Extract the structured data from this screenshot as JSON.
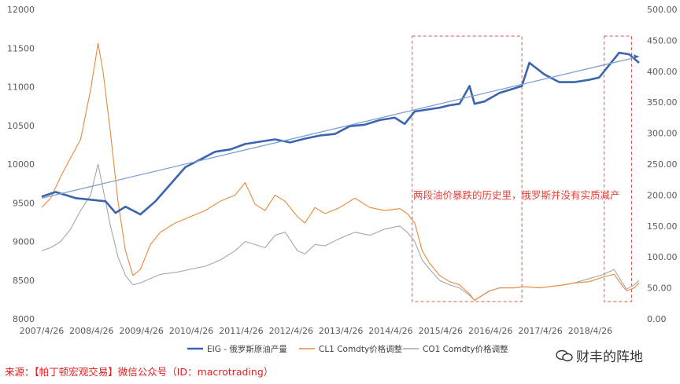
{
  "chart_data": {
    "type": "line",
    "x_ticks": [
      "2007/4/26",
      "2008/4/26",
      "2009/4/26",
      "2010/4/26",
      "2011/4/26",
      "2012/4/26",
      "2013/4/26",
      "2014/4/26",
      "2015/4/26",
      "2016/4/26",
      "2017/4/26",
      "2018/4/26"
    ],
    "y_left_ticks": [
      "8000",
      "8500",
      "9000",
      "9500",
      "10000",
      "10500",
      "11000",
      "11500",
      "12000"
    ],
    "y_right_ticks": [
      "0.00",
      "50.00",
      "100.00",
      "150.00",
      "200.00",
      "250.00",
      "300.00",
      "350.00",
      "400.00",
      "450.00",
      "500.00"
    ],
    "y_left_range": [
      8000,
      12000
    ],
    "y_right_range": [
      0,
      500
    ],
    "x_range": [
      2007.32,
      2019.3
    ],
    "grid": false,
    "legend_placement": "bottom",
    "series": [
      {
        "name": "EIG - 俄罗斯原油产量",
        "axis": "left",
        "color": "#3a63b0",
        "x": [
          2007.32,
          2007.6,
          2008.0,
          2008.3,
          2008.6,
          2008.8,
          2009.0,
          2009.3,
          2009.6,
          2009.9,
          2010.2,
          2010.5,
          2010.8,
          2011.1,
          2011.4,
          2011.7,
          2012.0,
          2012.3,
          2012.6,
          2012.9,
          2013.2,
          2013.5,
          2013.8,
          2014.1,
          2014.4,
          2014.6,
          2014.8,
          2015.0,
          2015.3,
          2015.5,
          2015.7,
          2015.9,
          2016.0,
          2016.2,
          2016.5,
          2016.8,
          2016.95,
          2017.1,
          2017.4,
          2017.7,
          2018.0,
          2018.3,
          2018.5,
          2018.7,
          2018.9,
          2019.1,
          2019.3
        ],
        "values": [
          9580,
          9640,
          9560,
          9540,
          9520,
          9370,
          9450,
          9350,
          9520,
          9740,
          9960,
          10060,
          10160,
          10190,
          10260,
          10290,
          10320,
          10280,
          10330,
          10370,
          10390,
          10490,
          10510,
          10570,
          10600,
          10520,
          10680,
          10700,
          10730,
          10760,
          10780,
          11010,
          10780,
          10810,
          10920,
          10980,
          11010,
          11310,
          11160,
          11060,
          11060,
          11090,
          11120,
          11280,
          11440,
          11420,
          11310
        ]
      },
      {
        "name": "CL1 Comdty价格调整",
        "axis": "right",
        "color": "#e8893a",
        "x": [
          2007.32,
          2007.5,
          2007.7,
          2007.9,
          2008.1,
          2008.3,
          2008.45,
          2008.55,
          2008.7,
          2008.85,
          2009.0,
          2009.15,
          2009.3,
          2009.5,
          2009.7,
          2010.0,
          2010.3,
          2010.6,
          2010.9,
          2011.2,
          2011.4,
          2011.6,
          2011.8,
          2012.0,
          2012.2,
          2012.45,
          2012.6,
          2012.8,
          2013.0,
          2013.3,
          2013.6,
          2013.9,
          2014.2,
          2014.5,
          2014.65,
          2014.8,
          2014.95,
          2015.1,
          2015.3,
          2015.5,
          2015.7,
          2015.9,
          2016.0,
          2016.1,
          2016.3,
          2016.5,
          2016.8,
          2017.0,
          2017.3,
          2017.5,
          2017.8,
          2018.0,
          2018.3,
          2018.6,
          2018.8,
          2018.95,
          2019.05,
          2019.2,
          2019.3
        ],
        "values": [
          180,
          195,
          230,
          260,
          290,
          370,
          445,
          400,
          300,
          190,
          110,
          70,
          80,
          120,
          140,
          155,
          165,
          175,
          190,
          200,
          220,
          185,
          175,
          200,
          190,
          165,
          155,
          180,
          170,
          180,
          195,
          180,
          175,
          178,
          170,
          155,
          110,
          90,
          70,
          60,
          55,
          40,
          30,
          35,
          45,
          50,
          50,
          52,
          50,
          52,
          55,
          58,
          60,
          68,
          72,
          55,
          45,
          50,
          58
        ]
      },
      {
        "name": "CO1 Comdty价格调整",
        "axis": "right",
        "color": "#a6a6a6",
        "x": [
          2007.32,
          2007.5,
          2007.7,
          2007.9,
          2008.1,
          2008.3,
          2008.45,
          2008.55,
          2008.7,
          2008.85,
          2009.0,
          2009.15,
          2009.3,
          2009.5,
          2009.7,
          2010.0,
          2010.3,
          2010.6,
          2010.9,
          2011.2,
          2011.4,
          2011.6,
          2011.8,
          2012.0,
          2012.2,
          2012.45,
          2012.6,
          2012.8,
          2013.0,
          2013.3,
          2013.6,
          2013.9,
          2014.2,
          2014.5,
          2014.65,
          2014.8,
          2014.95,
          2015.1,
          2015.3,
          2015.5,
          2015.7,
          2015.9,
          2016.0,
          2016.1,
          2016.3,
          2016.5,
          2016.8,
          2017.0,
          2017.3,
          2017.5,
          2017.8,
          2018.0,
          2018.3,
          2018.6,
          2018.8,
          2018.95,
          2019.05,
          2019.2,
          2019.3
        ],
        "values": [
          110,
          115,
          125,
          145,
          175,
          200,
          250,
          210,
          150,
          100,
          70,
          55,
          58,
          65,
          72,
          75,
          80,
          85,
          95,
          110,
          125,
          120,
          115,
          135,
          140,
          110,
          105,
          120,
          118,
          130,
          140,
          135,
          145,
          150,
          140,
          125,
          95,
          80,
          62,
          55,
          50,
          38,
          30,
          35,
          45,
          50,
          50,
          52,
          50,
          52,
          55,
          58,
          65,
          72,
          80,
          60,
          48,
          55,
          62
        ]
      }
    ],
    "trendline": {
      "axis": "left",
      "color": "#7f9fd0",
      "from": [
        2007.32,
        9560
      ],
      "to": [
        2019.3,
        11390
      ]
    },
    "annotation": "两段油价暴跌的历史里，俄罗斯并没有实质减产",
    "highlight_ranges": [
      [
        2014.75,
        2016.95
      ],
      [
        2018.6,
        2019.15
      ]
    ]
  },
  "legend": {
    "items": [
      "EIG - 俄罗斯原油产量",
      "CL1 Comdty价格调整",
      "CO1 Comdty价格调整"
    ]
  },
  "source_text": "来源：【帕丁顿宏观交易】微信公众号（ID：macrotrading）",
  "watermark_text": "财丰的阵地"
}
